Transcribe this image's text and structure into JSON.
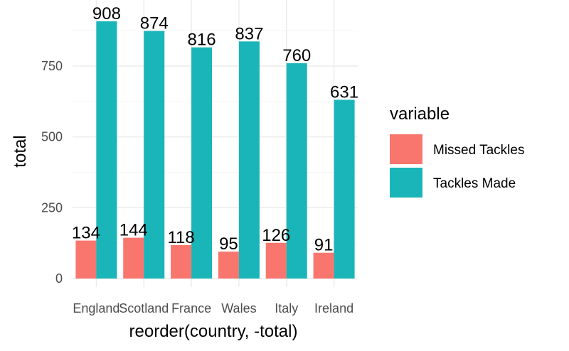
{
  "chart_data": {
    "type": "bar",
    "categories": [
      "England",
      "Scotland",
      "France",
      "Wales",
      "Italy",
      "Ireland"
    ],
    "series": [
      {
        "name": "Missed Tackles",
        "color": "#F8766D",
        "values": [
          134,
          144,
          118,
          95,
          126,
          91
        ]
      },
      {
        "name": "Tackles Made",
        "color": "#19B5B8",
        "values": [
          908,
          874,
          816,
          837,
          760,
          631
        ]
      }
    ],
    "xlabel": "reorder(country, -total)",
    "ylabel": "total",
    "ylim": [
      0,
      950
    ],
    "yticks": [
      0,
      250,
      500,
      750
    ],
    "legend_title": "variable",
    "legend_position": "right",
    "grid": true
  }
}
